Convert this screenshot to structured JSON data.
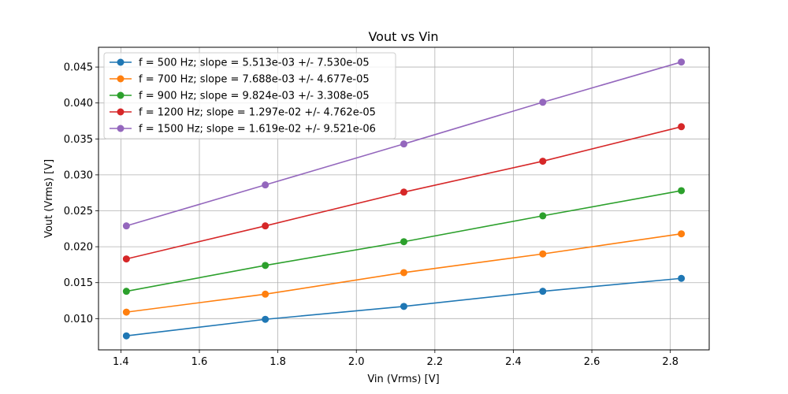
{
  "chart_data": {
    "type": "line",
    "title": "Vout vs Vin",
    "xlabel": "Vin (Vrms) [V]",
    "ylabel": "Vout (Vrms) [V]",
    "xlim": [
      1.343,
      2.899
    ],
    "ylim": [
      0.00565,
      0.04775
    ],
    "xticks": [
      1.4,
      1.6,
      1.8,
      2.0,
      2.2,
      2.4,
      2.6,
      2.8
    ],
    "xtick_labels": [
      "1.4",
      "1.6",
      "1.8",
      "2.0",
      "2.2",
      "2.4",
      "2.6",
      "2.8"
    ],
    "yticks": [
      0.01,
      0.015,
      0.02,
      0.025,
      0.03,
      0.035,
      0.04,
      0.045
    ],
    "ytick_labels": [
      "0.010",
      "0.015",
      "0.020",
      "0.025",
      "0.030",
      "0.035",
      "0.040",
      "0.045"
    ],
    "grid": true,
    "legend_position": "top-left",
    "x": [
      1.414,
      1.768,
      2.121,
      2.475,
      2.828
    ],
    "series": [
      {
        "name": "f = 500 Hz; slope = 5.513e-03 +/- 7.530e-05",
        "color": "#1f77b4",
        "values": [
          0.0076,
          0.0099,
          0.0117,
          0.0138,
          0.0156
        ]
      },
      {
        "name": "f = 700 Hz; slope = 7.688e-03 +/- 4.677e-05",
        "color": "#ff7f0e",
        "values": [
          0.0109,
          0.0134,
          0.0164,
          0.019,
          0.0218
        ]
      },
      {
        "name": "f = 900 Hz; slope = 9.824e-03 +/- 3.308e-05",
        "color": "#2ca02c",
        "values": [
          0.0138,
          0.0174,
          0.0207,
          0.0243,
          0.0278
        ]
      },
      {
        "name": "f = 1200 Hz; slope = 1.297e-02 +/- 4.762e-05",
        "color": "#d62728",
        "values": [
          0.0183,
          0.0229,
          0.0276,
          0.0319,
          0.0367
        ]
      },
      {
        "name": "f = 1500 Hz; slope = 1.619e-02 +/- 9.521e-06",
        "color": "#9467bd",
        "values": [
          0.0229,
          0.0286,
          0.0343,
          0.0401,
          0.0457
        ]
      }
    ]
  }
}
